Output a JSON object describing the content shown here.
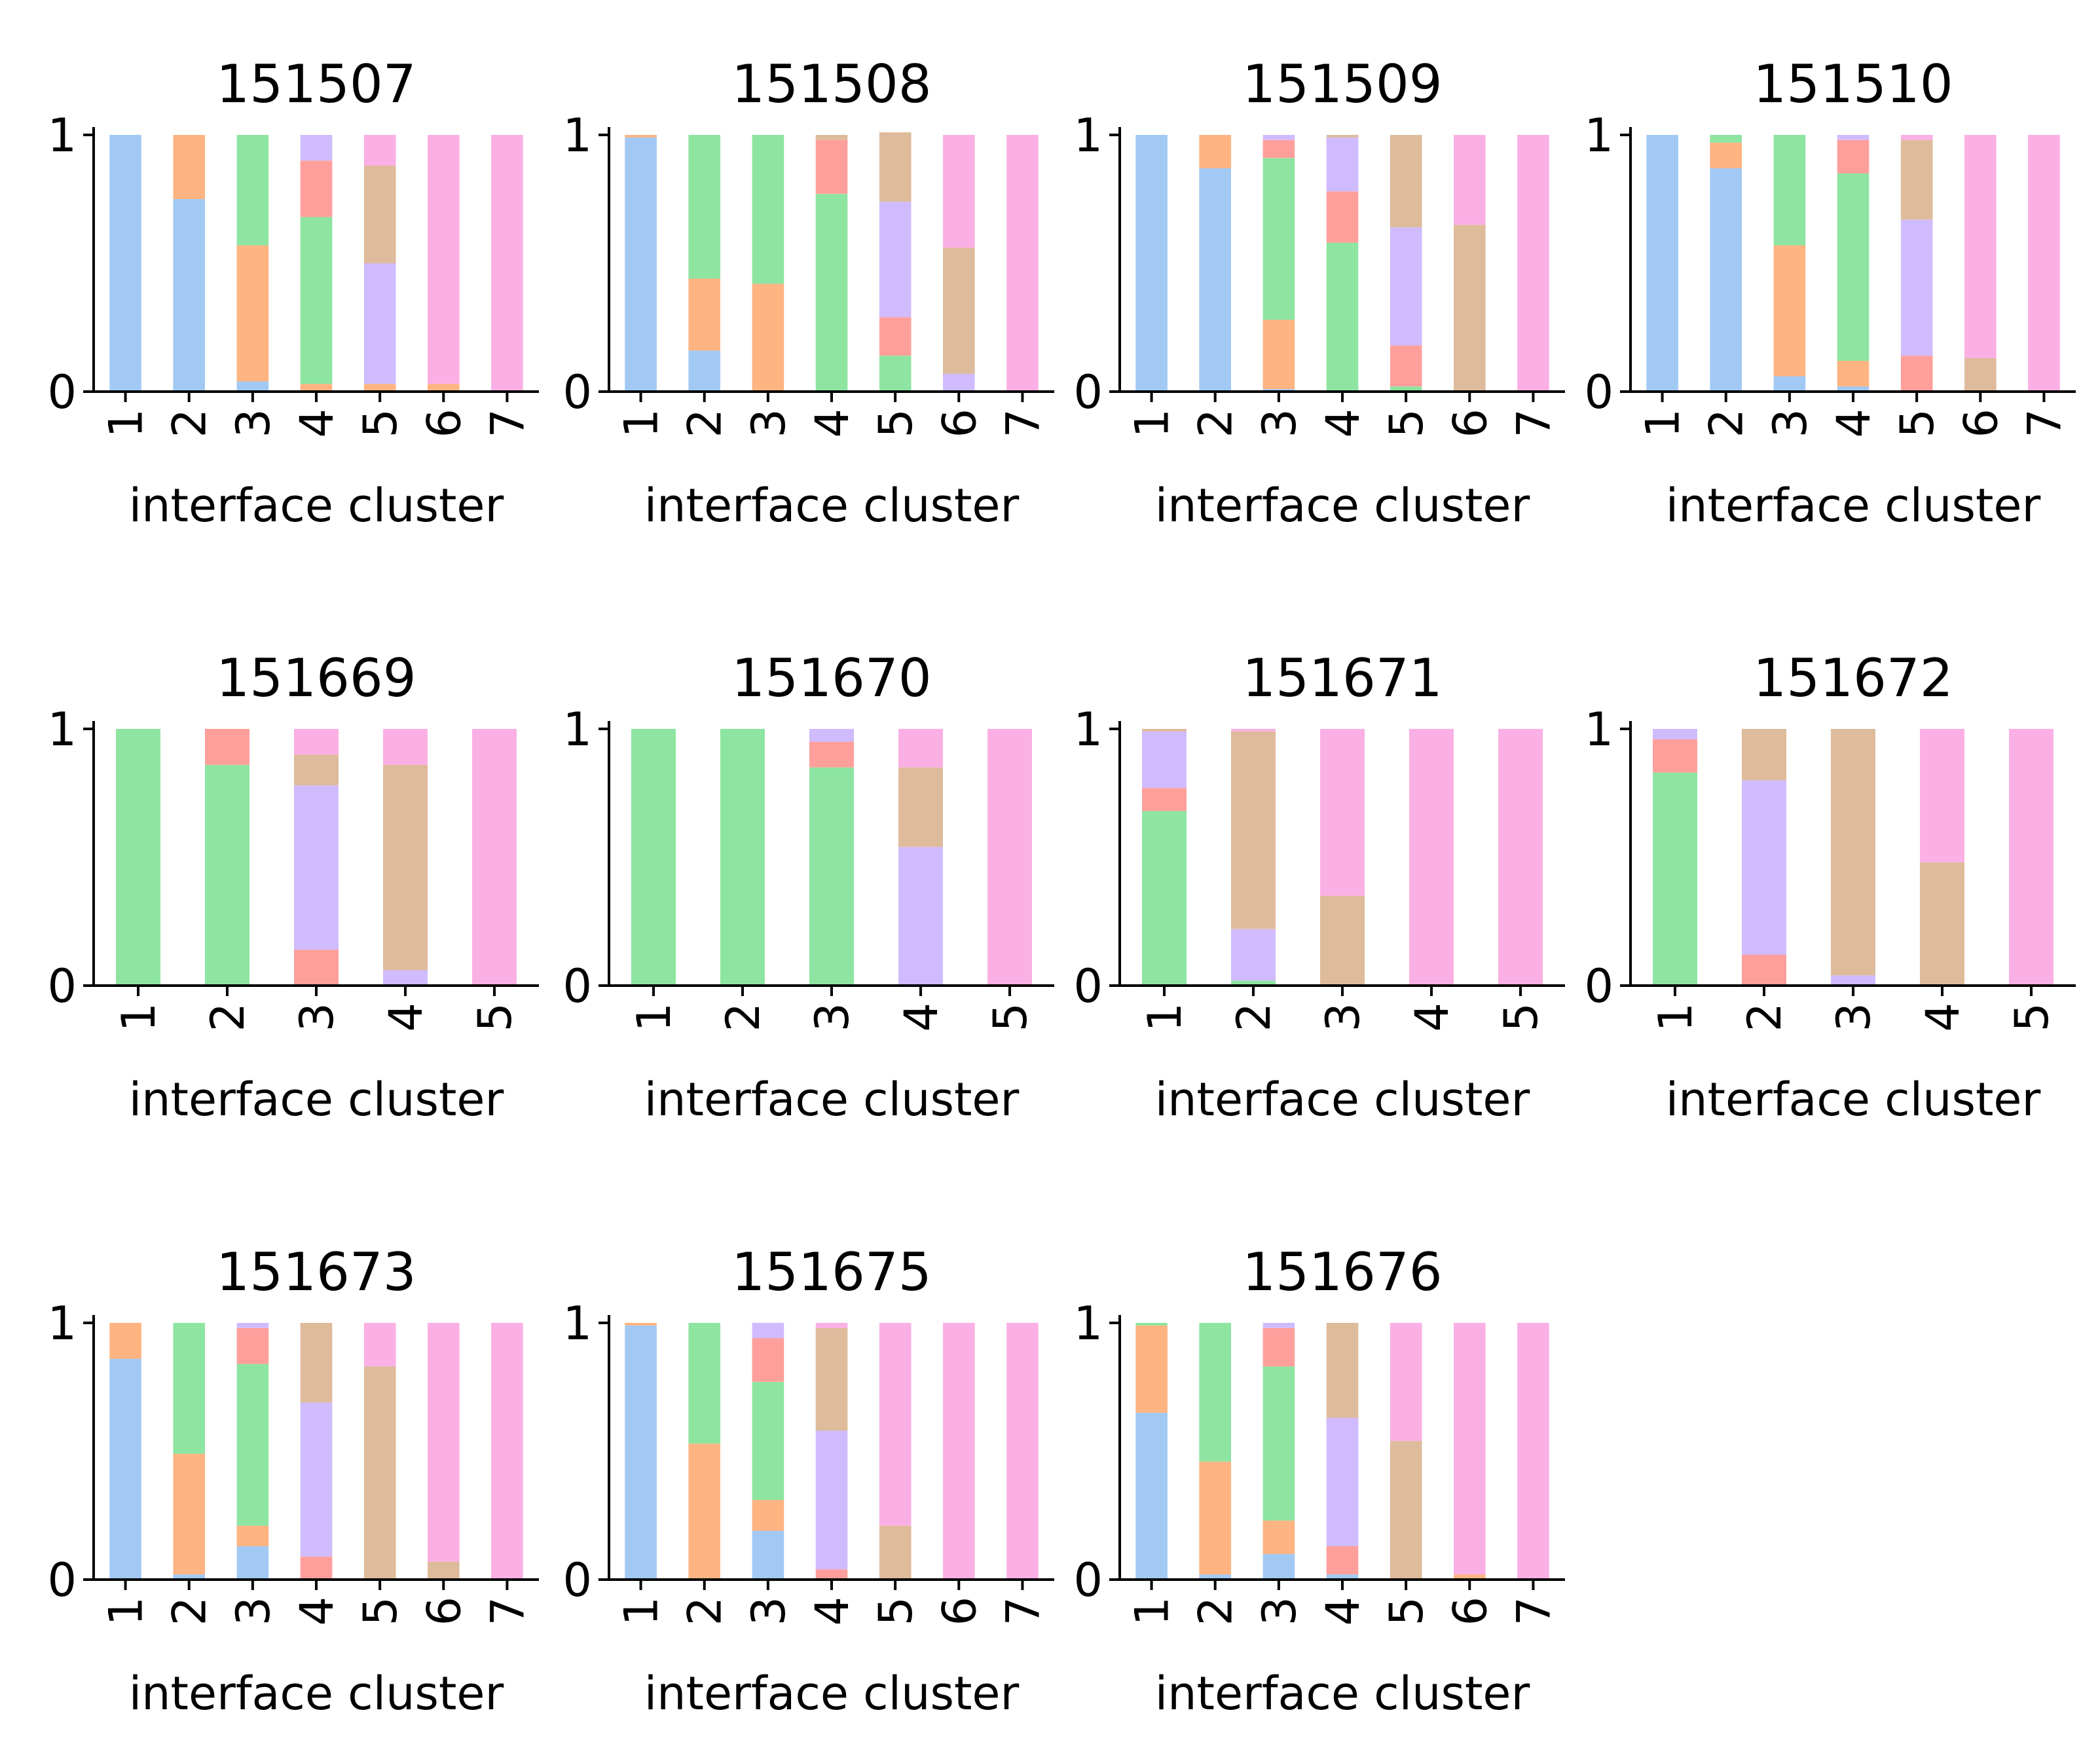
{
  "colors": {
    "segments": [
      "#a1c9f4",
      "#ffb482",
      "#8de5a1",
      "#ff9f9b",
      "#d0bbff",
      "#debb9b",
      "#fab0e4"
    ],
    "axis": "#000000",
    "background": "#ffffff"
  },
  "chart_data": [
    {
      "type": "bar",
      "stacked": true,
      "title": "151507",
      "xlabel": "interface cluster",
      "ylabel": "",
      "ylim": [
        0,
        1
      ],
      "yticks": [
        0,
        1
      ],
      "categories": [
        "1",
        "2",
        "3",
        "4",
        "5",
        "6",
        "7"
      ],
      "series": [
        {
          "values": [
            1.0,
            0.75,
            0.04,
            0.0,
            0.0,
            0.0,
            0.0
          ]
        },
        {
          "values": [
            0.0,
            0.25,
            0.53,
            0.03,
            0.03,
            0.03,
            0.0
          ]
        },
        {
          "values": [
            0.0,
            0.0,
            0.43,
            0.65,
            0.0,
            0.0,
            0.0
          ]
        },
        {
          "values": [
            0.0,
            0.0,
            0.0,
            0.22,
            0.0,
            0.0,
            0.0
          ]
        },
        {
          "values": [
            0.0,
            0.0,
            0.0,
            0.1,
            0.47,
            0.0,
            0.0
          ]
        },
        {
          "values": [
            0.0,
            0.0,
            0.0,
            0.0,
            0.38,
            0.0,
            0.0
          ]
        },
        {
          "values": [
            0.0,
            0.0,
            0.0,
            0.0,
            0.12,
            0.97,
            1.0
          ]
        }
      ]
    },
    {
      "type": "bar",
      "stacked": true,
      "title": "151508",
      "xlabel": "interface cluster",
      "ylabel": "",
      "ylim": [
        0,
        1
      ],
      "yticks": [
        0,
        1
      ],
      "categories": [
        "1",
        "2",
        "3",
        "4",
        "5",
        "6",
        "7"
      ],
      "series": [
        {
          "values": [
            0.99,
            0.16,
            0.0,
            0.0,
            0.0,
            0.0,
            0.0
          ]
        },
        {
          "values": [
            0.01,
            0.28,
            0.42,
            0.0,
            0.0,
            0.0,
            0.0
          ]
        },
        {
          "values": [
            0.0,
            0.56,
            0.58,
            0.77,
            0.14,
            0.0,
            0.0
          ]
        },
        {
          "values": [
            0.0,
            0.0,
            0.0,
            0.21,
            0.15,
            0.0,
            0.0
          ]
        },
        {
          "values": [
            0.0,
            0.0,
            0.0,
            0.0,
            0.45,
            0.07,
            0.0
          ]
        },
        {
          "values": [
            0.0,
            0.0,
            0.0,
            0.02,
            0.27,
            0.49,
            0.0
          ]
        },
        {
          "values": [
            0.0,
            0.0,
            0.0,
            0.0,
            0.0,
            0.44,
            1.0
          ]
        }
      ]
    },
    {
      "type": "bar",
      "stacked": true,
      "title": "151509",
      "xlabel": "interface cluster",
      "ylabel": "",
      "ylim": [
        0,
        1
      ],
      "yticks": [
        0,
        1
      ],
      "categories": [
        "1",
        "2",
        "3",
        "4",
        "5",
        "6",
        "7"
      ],
      "series": [
        {
          "values": [
            1.0,
            0.87,
            0.01,
            0.0,
            0.0,
            0.0,
            0.0
          ]
        },
        {
          "values": [
            0.0,
            0.13,
            0.27,
            0.0,
            0.0,
            0.0,
            0.0
          ]
        },
        {
          "values": [
            0.0,
            0.0,
            0.63,
            0.58,
            0.02,
            0.0,
            0.0
          ]
        },
        {
          "values": [
            0.0,
            0.0,
            0.07,
            0.2,
            0.16,
            0.0,
            0.0
          ]
        },
        {
          "values": [
            0.0,
            0.0,
            0.02,
            0.21,
            0.46,
            0.0,
            0.0
          ]
        },
        {
          "values": [
            0.0,
            0.0,
            0.0,
            0.01,
            0.36,
            0.65,
            0.0
          ]
        },
        {
          "values": [
            0.0,
            0.0,
            0.0,
            0.0,
            0.0,
            0.35,
            1.0
          ]
        }
      ]
    },
    {
      "type": "bar",
      "stacked": true,
      "title": "151510",
      "xlabel": "interface cluster",
      "ylabel": "",
      "ylim": [
        0,
        1
      ],
      "yticks": [
        0,
        1
      ],
      "categories": [
        "1",
        "2",
        "3",
        "4",
        "5",
        "6",
        "7"
      ],
      "series": [
        {
          "values": [
            1.0,
            0.87,
            0.06,
            0.02,
            0.0,
            0.0,
            0.0
          ]
        },
        {
          "values": [
            0.0,
            0.1,
            0.51,
            0.1,
            0.0,
            0.0,
            0.0
          ]
        },
        {
          "values": [
            0.0,
            0.03,
            0.43,
            0.73,
            0.0,
            0.0,
            0.0
          ]
        },
        {
          "values": [
            0.0,
            0.0,
            0.0,
            0.13,
            0.14,
            0.0,
            0.0
          ]
        },
        {
          "values": [
            0.0,
            0.0,
            0.0,
            0.02,
            0.53,
            0.0,
            0.0
          ]
        },
        {
          "values": [
            0.0,
            0.0,
            0.0,
            0.0,
            0.31,
            0.13,
            0.0
          ]
        },
        {
          "values": [
            0.0,
            0.0,
            0.0,
            0.0,
            0.02,
            0.87,
            1.0
          ]
        }
      ]
    },
    {
      "type": "bar",
      "stacked": true,
      "title": "151669",
      "xlabel": "interface cluster",
      "ylabel": "",
      "ylim": [
        0,
        1
      ],
      "yticks": [
        0,
        1
      ],
      "categories": [
        "1",
        "2",
        "3",
        "4",
        "5"
      ],
      "series": [
        {
          "values": [
            0.0,
            0.0,
            0.0,
            0.0,
            0.0
          ]
        },
        {
          "values": [
            0.0,
            0.0,
            0.0,
            0.0,
            0.0
          ]
        },
        {
          "values": [
            1.0,
            0.86,
            0.0,
            0.0,
            0.0
          ]
        },
        {
          "values": [
            0.0,
            0.14,
            0.14,
            0.0,
            0.0
          ]
        },
        {
          "values": [
            0.0,
            0.0,
            0.64,
            0.06,
            0.0
          ]
        },
        {
          "values": [
            0.0,
            0.0,
            0.12,
            0.8,
            0.0
          ]
        },
        {
          "values": [
            0.0,
            0.0,
            0.1,
            0.14,
            1.0
          ]
        }
      ]
    },
    {
      "type": "bar",
      "stacked": true,
      "title": "151670",
      "xlabel": "interface cluster",
      "ylabel": "",
      "ylim": [
        0,
        1
      ],
      "yticks": [
        0,
        1
      ],
      "categories": [
        "1",
        "2",
        "3",
        "4",
        "5"
      ],
      "series": [
        {
          "values": [
            0.0,
            0.0,
            0.0,
            0.0,
            0.0
          ]
        },
        {
          "values": [
            0.0,
            0.0,
            0.0,
            0.0,
            0.0
          ]
        },
        {
          "values": [
            1.0,
            1.0,
            0.85,
            0.0,
            0.0
          ]
        },
        {
          "values": [
            0.0,
            0.0,
            0.1,
            0.0,
            0.0
          ]
        },
        {
          "values": [
            0.0,
            0.0,
            0.05,
            0.54,
            0.0
          ]
        },
        {
          "values": [
            0.0,
            0.0,
            0.0,
            0.31,
            0.0
          ]
        },
        {
          "values": [
            0.0,
            0.0,
            0.0,
            0.15,
            1.0
          ]
        }
      ]
    },
    {
      "type": "bar",
      "stacked": true,
      "title": "151671",
      "xlabel": "interface cluster",
      "ylabel": "",
      "ylim": [
        0,
        1
      ],
      "yticks": [
        0,
        1
      ],
      "categories": [
        "1",
        "2",
        "3",
        "4",
        "5"
      ],
      "series": [
        {
          "values": [
            0.0,
            0.0,
            0.0,
            0.0,
            0.0
          ]
        },
        {
          "values": [
            0.0,
            0.0,
            0.0,
            0.0,
            0.0
          ]
        },
        {
          "values": [
            0.68,
            0.02,
            0.0,
            0.0,
            0.0
          ]
        },
        {
          "values": [
            0.09,
            0.0,
            0.0,
            0.0,
            0.0
          ]
        },
        {
          "values": [
            0.22,
            0.2,
            0.0,
            0.0,
            0.0
          ]
        },
        {
          "values": [
            0.01,
            0.77,
            0.35,
            0.0,
            0.0
          ]
        },
        {
          "values": [
            0.0,
            0.01,
            0.65,
            1.0,
            1.0
          ]
        }
      ]
    },
    {
      "type": "bar",
      "stacked": true,
      "title": "151672",
      "xlabel": "interface cluster",
      "ylabel": "",
      "ylim": [
        0,
        1
      ],
      "yticks": [
        0,
        1
      ],
      "categories": [
        "1",
        "2",
        "3",
        "4",
        "5"
      ],
      "series": [
        {
          "values": [
            0.0,
            0.0,
            0.0,
            0.0,
            0.0
          ]
        },
        {
          "values": [
            0.0,
            0.0,
            0.0,
            0.0,
            0.0
          ]
        },
        {
          "values": [
            0.83,
            0.0,
            0.0,
            0.0,
            0.0
          ]
        },
        {
          "values": [
            0.13,
            0.12,
            0.0,
            0.0,
            0.0
          ]
        },
        {
          "values": [
            0.04,
            0.68,
            0.04,
            0.0,
            0.0
          ]
        },
        {
          "values": [
            0.0,
            0.2,
            0.96,
            0.48,
            0.0
          ]
        },
        {
          "values": [
            0.0,
            0.0,
            0.0,
            0.52,
            1.0
          ]
        }
      ]
    },
    {
      "type": "bar",
      "stacked": true,
      "title": "151673",
      "xlabel": "interface cluster",
      "ylabel": "",
      "ylim": [
        0,
        1
      ],
      "yticks": [
        0,
        1
      ],
      "categories": [
        "1",
        "2",
        "3",
        "4",
        "5",
        "6",
        "7"
      ],
      "series": [
        {
          "values": [
            0.86,
            0.02,
            0.13,
            0.0,
            0.0,
            0.0,
            0.0
          ]
        },
        {
          "values": [
            0.14,
            0.47,
            0.08,
            0.0,
            0.0,
            0.0,
            0.0
          ]
        },
        {
          "values": [
            0.0,
            0.51,
            0.63,
            0.0,
            0.0,
            0.0,
            0.0
          ]
        },
        {
          "values": [
            0.0,
            0.0,
            0.14,
            0.09,
            0.0,
            0.0,
            0.0
          ]
        },
        {
          "values": [
            0.0,
            0.0,
            0.02,
            0.6,
            0.0,
            0.0,
            0.0
          ]
        },
        {
          "values": [
            0.0,
            0.0,
            0.0,
            0.31,
            0.83,
            0.07,
            0.0
          ]
        },
        {
          "values": [
            0.0,
            0.0,
            0.0,
            0.0,
            0.17,
            0.93,
            1.0
          ]
        }
      ]
    },
    {
      "type": "bar",
      "stacked": true,
      "title": "151675",
      "xlabel": "interface cluster",
      "ylabel": "",
      "ylim": [
        0,
        1
      ],
      "yticks": [
        0,
        1
      ],
      "categories": [
        "1",
        "2",
        "3",
        "4",
        "5",
        "6",
        "7"
      ],
      "series": [
        {
          "values": [
            0.99,
            0.0,
            0.19,
            0.0,
            0.0,
            0.0,
            0.0
          ]
        },
        {
          "values": [
            0.01,
            0.53,
            0.12,
            0.0,
            0.0,
            0.0,
            0.0
          ]
        },
        {
          "values": [
            0.0,
            0.47,
            0.46,
            0.0,
            0.0,
            0.0,
            0.0
          ]
        },
        {
          "values": [
            0.0,
            0.0,
            0.17,
            0.04,
            0.0,
            0.0,
            0.0
          ]
        },
        {
          "values": [
            0.0,
            0.0,
            0.06,
            0.54,
            0.0,
            0.0,
            0.0
          ]
        },
        {
          "values": [
            0.0,
            0.0,
            0.0,
            0.4,
            0.21,
            0.0,
            0.0
          ]
        },
        {
          "values": [
            0.0,
            0.0,
            0.0,
            0.02,
            0.79,
            1.0,
            1.0
          ]
        }
      ]
    },
    {
      "type": "bar",
      "stacked": true,
      "title": "151676",
      "xlabel": "interface cluster",
      "ylabel": "",
      "ylim": [
        0,
        1
      ],
      "yticks": [
        0,
        1
      ],
      "categories": [
        "1",
        "2",
        "3",
        "4",
        "5",
        "6",
        "7"
      ],
      "series": [
        {
          "values": [
            0.65,
            0.02,
            0.1,
            0.02,
            0.0,
            0.0,
            0.0
          ]
        },
        {
          "values": [
            0.34,
            0.44,
            0.13,
            0.0,
            0.0,
            0.02,
            0.0
          ]
        },
        {
          "values": [
            0.01,
            0.54,
            0.6,
            0.0,
            0.0,
            0.0,
            0.0
          ]
        },
        {
          "values": [
            0.0,
            0.0,
            0.15,
            0.11,
            0.0,
            0.0,
            0.0
          ]
        },
        {
          "values": [
            0.0,
            0.0,
            0.02,
            0.5,
            0.0,
            0.0,
            0.0
          ]
        },
        {
          "values": [
            0.0,
            0.0,
            0.0,
            0.37,
            0.54,
            0.0,
            0.0
          ]
        },
        {
          "values": [
            0.0,
            0.0,
            0.0,
            0.0,
            0.46,
            0.98,
            1.0
          ]
        }
      ]
    }
  ]
}
